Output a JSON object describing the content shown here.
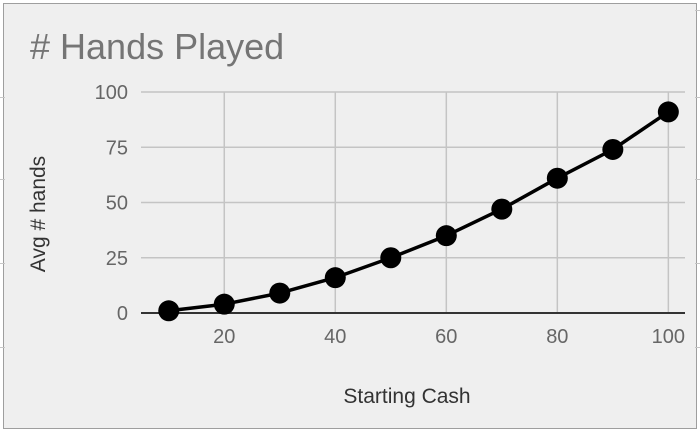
{
  "chart_data": {
    "type": "line",
    "title": "# Hands Played",
    "xlabel": "Starting Cash",
    "ylabel": "Avg # hands",
    "x_ticks": [
      20,
      40,
      60,
      80,
      100
    ],
    "y_ticks": [
      0,
      25,
      50,
      75,
      100
    ],
    "xlim": [
      5,
      103
    ],
    "ylim": [
      0,
      100
    ],
    "grid": true,
    "legend": "none",
    "series": [
      {
        "color": "#000000",
        "x": [
          10,
          20,
          30,
          40,
          50,
          60,
          70,
          80,
          90,
          100
        ],
        "y": [
          1,
          4,
          9,
          16,
          25,
          35,
          47,
          61,
          74,
          91
        ]
      }
    ]
  }
}
